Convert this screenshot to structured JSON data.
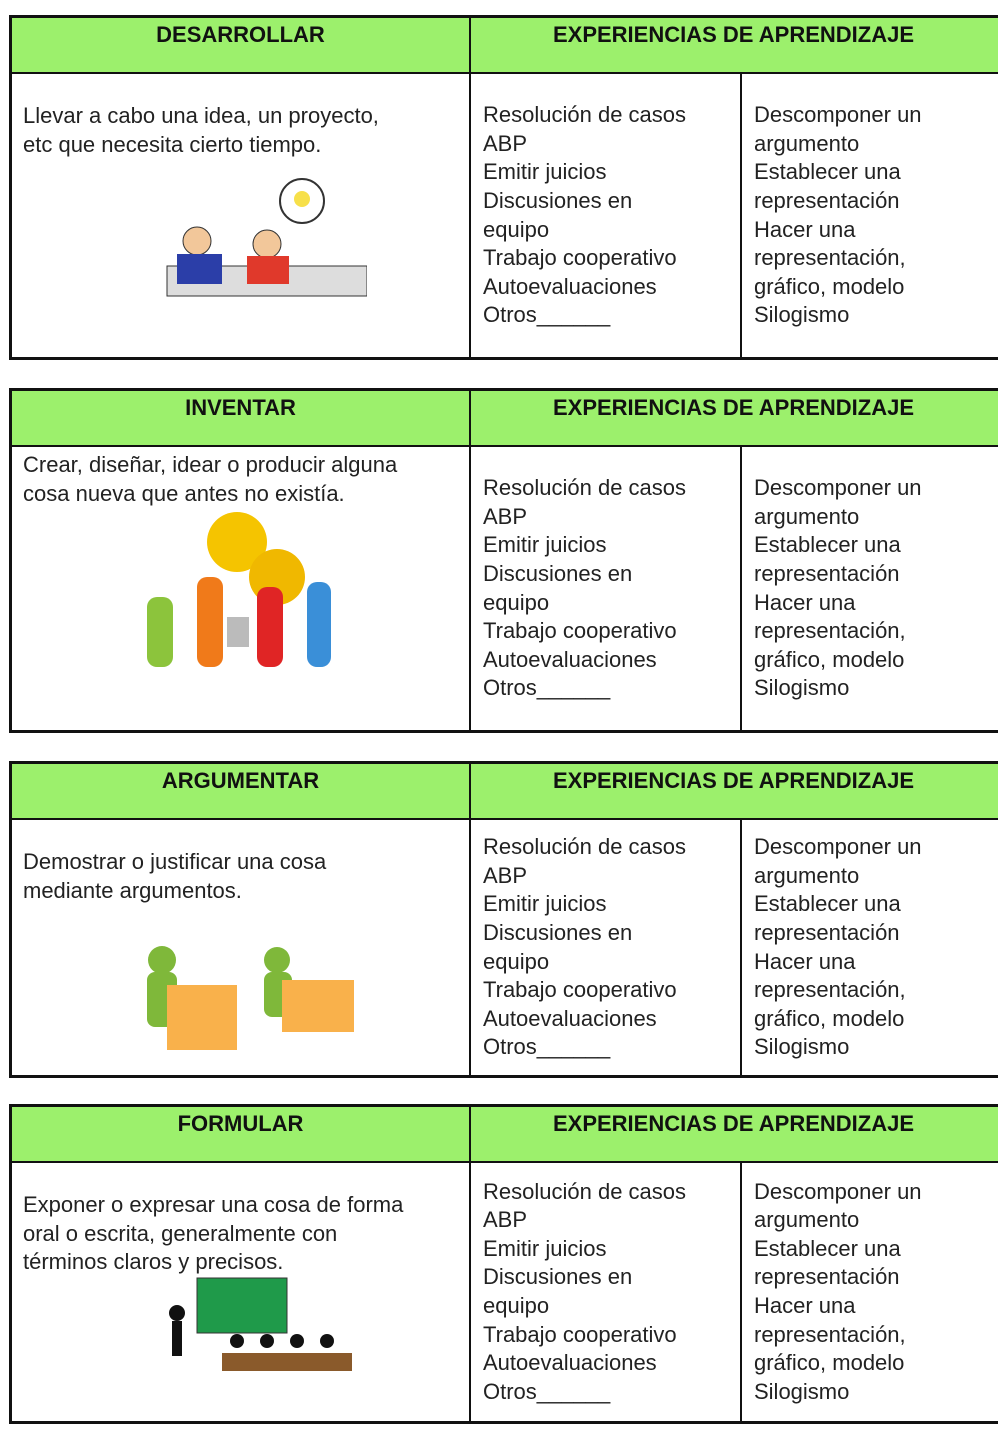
{
  "tables": [
    {
      "verb": "DESARROLLAR",
      "header": "EXPERIENCIAS DE APRENDIZAJE",
      "description": [
        "Llevar a cabo una idea, un proyecto,",
        "etc que necesita cierto tiempo."
      ],
      "experiences_1": [
        "Resolución de casos",
        "ABP",
        "Emitir juicios",
        "Discusiones en",
        "equipo",
        "Trabajo cooperativo",
        "Autoevaluaciones",
        "Otros______"
      ],
      "experiences_2": [
        "Descomponer un",
        "argumento",
        "Establecer una",
        "representación",
        "Hacer una",
        "representación,",
        "gráfico, modelo",
        "Silogismo"
      ]
    },
    {
      "verb": "INVENTAR",
      "header": "EXPERIENCIAS DE APRENDIZAJE",
      "description": [
        "Crear, diseñar, idear o producir alguna",
        "cosa nueva que antes no existía."
      ],
      "experiences_1": [
        "Resolución de casos",
        "ABP",
        "Emitir juicios",
        "Discusiones en",
        "equipo",
        "Trabajo cooperativo",
        "Autoevaluaciones",
        "Otros______"
      ],
      "experiences_2": [
        "Descomponer un",
        "argumento",
        "Establecer una",
        "representación",
        "Hacer una",
        "representación,",
        "gráfico, modelo",
        "Silogismo"
      ]
    },
    {
      "verb": "ARGUMENTAR",
      "header": "EXPERIENCIAS DE APRENDIZAJE",
      "description": [
        "Demostrar o justificar una cosa",
        "mediante argumentos."
      ],
      "experiences_1": [
        "Resolución de casos",
        "ABP",
        "Emitir juicios",
        "Discusiones en",
        "equipo",
        "Trabajo cooperativo",
        "Autoevaluaciones",
        "Otros______"
      ],
      "experiences_2": [
        "Descomponer un",
        "argumento",
        "Establecer una",
        "representación",
        "Hacer una",
        "representación,",
        "gráfico, modelo",
        "Silogismo"
      ]
    },
    {
      "verb": "FORMULAR",
      "header": "EXPERIENCIAS DE APRENDIZAJE",
      "description": [
        "Exponer o expresar una cosa de forma",
        "oral o escrita, generalmente con",
        "términos claros y precisos."
      ],
      "experiences_1": [
        "Resolución de casos",
        "ABP",
        "Emitir juicios",
        "Discusiones en",
        "equipo",
        "Trabajo cooperativo",
        "Autoevaluaciones",
        "Otros______"
      ],
      "experiences_2": [
        "Descomponer un",
        "argumento",
        "Establecer una",
        "representación",
        "Hacer una",
        "representación,",
        "gráfico, modelo",
        "Silogismo"
      ]
    }
  ]
}
